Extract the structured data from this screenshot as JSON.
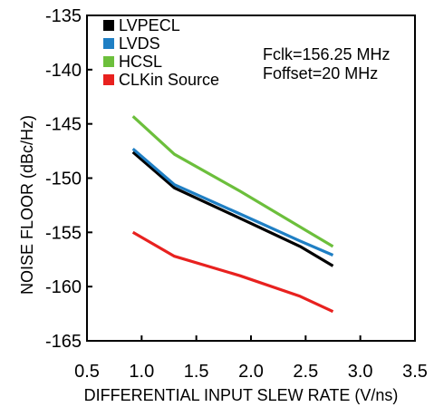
{
  "chart_data": {
    "type": "line",
    "title": "",
    "xlabel": "DIFFERENTIAL INPUT SLEW RATE (V/ns)",
    "ylabel": "NOISE FLOOR (dBc/Hz)",
    "xlim": [
      0.5,
      3.5
    ],
    "ylim": [
      -165,
      -135
    ],
    "xticks": [
      "0.5",
      "1.0",
      "1.5",
      "2.0",
      "2.5",
      "3.0",
      "3.5"
    ],
    "yticks": [
      "-135",
      "-140",
      "-145",
      "-150",
      "-155",
      "-160",
      "-165"
    ],
    "grid": false,
    "legend_position": "top-left",
    "annotations": [
      "Fclk=156.25 MHz",
      "Foffset=20 MHz"
    ],
    "series": [
      {
        "name": "LVPECL",
        "color": "#000000",
        "x": [
          0.92,
          1.3,
          1.9,
          2.45,
          2.75
        ],
        "y": [
          -147.6,
          -150.9,
          -153.7,
          -156.3,
          -158.1
        ]
      },
      {
        "name": "LVDS",
        "color": "#1f7fc4",
        "x": [
          0.92,
          1.3,
          1.9,
          2.45,
          2.75
        ],
        "y": [
          -147.3,
          -150.6,
          -153.3,
          -155.8,
          -157.1
        ]
      },
      {
        "name": "HCSL",
        "color": "#6cbf3c",
        "x": [
          0.92,
          1.3,
          1.9,
          2.45,
          2.75
        ],
        "y": [
          -144.3,
          -147.8,
          -151.2,
          -154.5,
          -156.3
        ]
      },
      {
        "name": "CLKin Source",
        "color": "#e8211f",
        "x": [
          0.92,
          1.3,
          1.9,
          2.45,
          2.75
        ],
        "y": [
          -155.0,
          -157.2,
          -159.0,
          -160.9,
          -162.3
        ]
      }
    ]
  }
}
